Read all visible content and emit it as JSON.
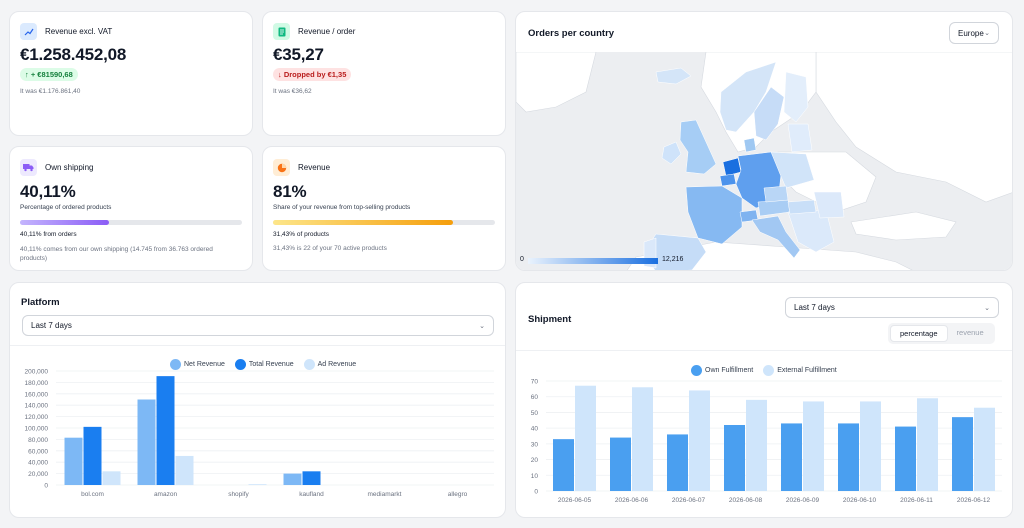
{
  "kpis": {
    "revenue": {
      "title": "Revenue excl. VAT",
      "value": "€1.258.452,08",
      "badge": "+ €81590,68",
      "sub": "It was €1.176.861,40"
    },
    "revenue_order": {
      "title": "Revenue / order",
      "value": "€35,27",
      "badge": "Dropped by €1,35",
      "sub": "It was €36,62"
    },
    "own_shipping": {
      "title": "Own shipping",
      "value": "40,11%",
      "desc": "Percentage of ordered products",
      "progress": 0.4011,
      "line1": "40,11% from orders",
      "line2": "40,11% comes from our own shipping (14.745 from 36.763 ordered products)"
    },
    "revenue_share": {
      "title": "Revenue",
      "value": "81%",
      "desc": "Share of your revenue from top-selling products",
      "progress": 0.81,
      "line1": "31,43% of products",
      "line2": "31,43% is 22 of your 70 active products"
    }
  },
  "map": {
    "title": "Orders per country",
    "region_select": "Europe",
    "scale_min": "0",
    "scale_max": "12,216"
  },
  "platform": {
    "title": "Platform",
    "period": "Last 7 days"
  },
  "shipment": {
    "title": "Shipment",
    "period": "Last 7 days",
    "toggle": [
      "percentage",
      "revenue"
    ]
  },
  "colors": {
    "light": "#7db8f5",
    "strong": "#1a7ef0",
    "pale": "#cfe5fb",
    "accent_green": "#16a34a",
    "accent_red": "#dc2626"
  },
  "chart_data": [
    {
      "type": "bar",
      "categories": [
        "bol.com",
        "amazon",
        "shopify",
        "kaufland",
        "mediamarkt",
        "allegro"
      ],
      "series": [
        {
          "name": "Net Revenue",
          "values": [
            83000,
            150000,
            0,
            20000,
            0,
            0
          ]
        },
        {
          "name": "Total Revenue",
          "values": [
            102000,
            191000,
            0,
            24000,
            0,
            0
          ]
        },
        {
          "name": "Ad Revenue",
          "values": [
            24000,
            51000,
            1000,
            0,
            0,
            0
          ]
        }
      ],
      "yticks": [
        "200,000",
        "180,000",
        "160,000",
        "140,000",
        "120,000",
        "100,000",
        "80,000",
        "60,000",
        "40,000",
        "20,000",
        "0"
      ],
      "ylim": [
        0,
        200000
      ],
      "legend": "top"
    },
    {
      "type": "bar",
      "categories": [
        "2026-06-05",
        "2026-06-06",
        "2026-06-07",
        "2026-06-08",
        "2026-06-09",
        "2026-06-10",
        "2026-06-11",
        "2026-06-12"
      ],
      "series": [
        {
          "name": "Own Fulfillment",
          "values": [
            33,
            34,
            36,
            42,
            43,
            43,
            41,
            47
          ]
        },
        {
          "name": "External Fulfillment",
          "values": [
            67,
            66,
            64,
            58,
            57,
            57,
            59,
            53
          ]
        }
      ],
      "yticks": [
        "70",
        "60",
        "50",
        "40",
        "30",
        "20",
        "10",
        "0"
      ],
      "ylim": [
        0,
        70
      ],
      "legend": "top"
    }
  ]
}
